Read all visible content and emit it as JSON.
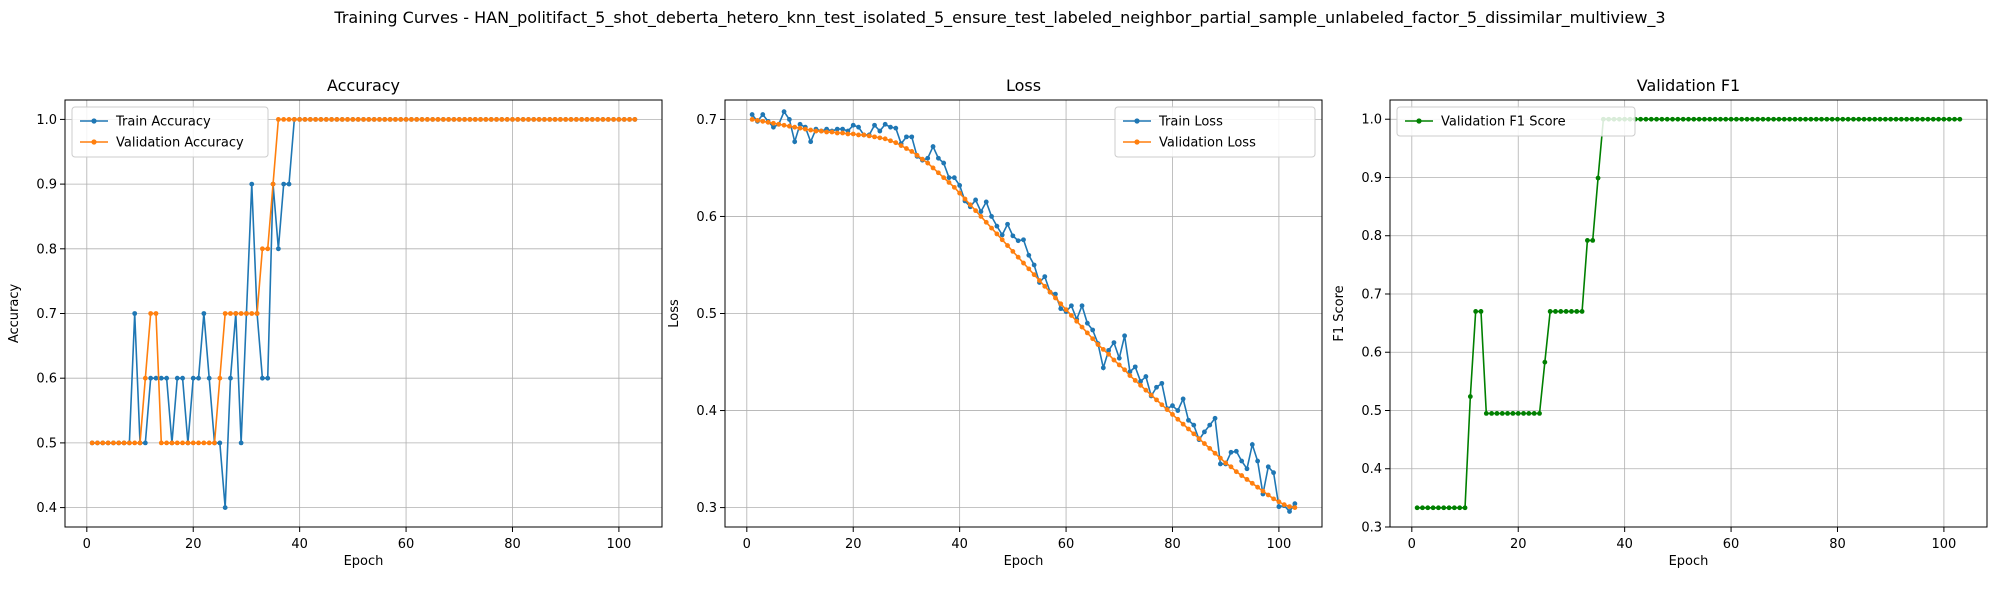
{
  "figure": {
    "suptitle": "Training Curves - HAN_politifact_5_shot_deberta_hetero_knn_test_isolated_5_ensure_test_labeled_neighbor_partial_sample_unlabeled_factor_5_dissimilar_multiview_3"
  },
  "colors": {
    "blue": "#1f77b4",
    "orange": "#ff7f0e",
    "green": "#008000",
    "grid": "#b0b0b0"
  },
  "chart_data": [
    {
      "type": "line",
      "title": "Accuracy",
      "xlabel": "Epoch",
      "ylabel": "Accuracy",
      "xlim": [
        -4.1,
        108.1
      ],
      "ylim": [
        0.37,
        1.03
      ],
      "xticks": [
        0,
        20,
        40,
        60,
        80,
        100
      ],
      "yticks": [
        0.4,
        0.5,
        0.6,
        0.7,
        0.8,
        0.9,
        1.0
      ],
      "ytick_labels": [
        "0.4",
        "0.5",
        "0.6",
        "0.7",
        "0.8",
        "0.9",
        "1.0"
      ],
      "grid": true,
      "legend_position": "upper-left",
      "series": [
        {
          "name": "Train Accuracy",
          "color": "#1f77b4",
          "x_start": 1,
          "values": [
            0.5,
            0.5,
            0.5,
            0.5,
            0.5,
            0.5,
            0.5,
            0.5,
            0.7,
            0.5,
            0.5,
            0.6,
            0.6,
            0.6,
            0.6,
            0.5,
            0.6,
            0.6,
            0.5,
            0.6,
            0.6,
            0.7,
            0.6,
            0.5,
            0.5,
            0.4,
            0.6,
            0.7,
            0.5,
            0.7,
            0.9,
            0.7,
            0.6,
            0.6,
            0.9,
            0.8,
            0.9,
            0.9,
            1.0,
            1.0,
            1.0,
            1.0,
            1.0,
            1.0,
            1.0,
            1.0,
            1.0,
            1.0,
            1.0,
            1.0,
            1.0,
            1.0,
            1.0,
            1.0,
            1.0,
            1.0,
            1.0,
            1.0,
            1.0,
            1.0,
            1.0,
            1.0,
            1.0,
            1.0,
            1.0,
            1.0,
            1.0,
            1.0,
            1.0,
            1.0,
            1.0,
            1.0,
            1.0,
            1.0,
            1.0,
            1.0,
            1.0,
            1.0,
            1.0,
            1.0,
            1.0,
            1.0,
            1.0,
            1.0,
            1.0,
            1.0,
            1.0,
            1.0,
            1.0,
            1.0,
            1.0,
            1.0,
            1.0,
            1.0,
            1.0,
            1.0,
            1.0,
            1.0,
            1.0,
            1.0,
            1.0,
            1.0,
            1.0
          ]
        },
        {
          "name": "Validation Accuracy",
          "color": "#ff7f0e",
          "x_start": 1,
          "values": [
            0.5,
            0.5,
            0.5,
            0.5,
            0.5,
            0.5,
            0.5,
            0.5,
            0.5,
            0.5,
            0.6,
            0.7,
            0.7,
            0.5,
            0.5,
            0.5,
            0.5,
            0.5,
            0.5,
            0.5,
            0.5,
            0.5,
            0.5,
            0.5,
            0.6,
            0.7,
            0.7,
            0.7,
            0.7,
            0.7,
            0.7,
            0.7,
            0.8,
            0.8,
            0.9,
            1.0,
            1.0,
            1.0,
            1.0,
            1.0,
            1.0,
            1.0,
            1.0,
            1.0,
            1.0,
            1.0,
            1.0,
            1.0,
            1.0,
            1.0,
            1.0,
            1.0,
            1.0,
            1.0,
            1.0,
            1.0,
            1.0,
            1.0,
            1.0,
            1.0,
            1.0,
            1.0,
            1.0,
            1.0,
            1.0,
            1.0,
            1.0,
            1.0,
            1.0,
            1.0,
            1.0,
            1.0,
            1.0,
            1.0,
            1.0,
            1.0,
            1.0,
            1.0,
            1.0,
            1.0,
            1.0,
            1.0,
            1.0,
            1.0,
            1.0,
            1.0,
            1.0,
            1.0,
            1.0,
            1.0,
            1.0,
            1.0,
            1.0,
            1.0,
            1.0,
            1.0,
            1.0,
            1.0,
            1.0,
            1.0,
            1.0,
            1.0,
            1.0
          ]
        }
      ]
    },
    {
      "type": "line",
      "title": "Loss",
      "xlabel": "Epoch",
      "ylabel": "Loss",
      "xlim": [
        -4.1,
        108.1
      ],
      "ylim": [
        0.28,
        0.72
      ],
      "xticks": [
        0,
        20,
        40,
        60,
        80,
        100
      ],
      "yticks": [
        0.3,
        0.4,
        0.5,
        0.6,
        0.7
      ],
      "ytick_labels": [
        "0.3",
        "0.4",
        "0.5",
        "0.6",
        "0.7"
      ],
      "grid": true,
      "legend_position": "upper-right",
      "series": [
        {
          "name": "Train Loss",
          "color": "#1f77b4",
          "x_start": 1,
          "values": [
            0.705,
            0.698,
            0.705,
            0.698,
            0.692,
            0.695,
            0.708,
            0.7,
            0.677,
            0.695,
            0.692,
            0.677,
            0.69,
            0.688,
            0.69,
            0.688,
            0.69,
            0.69,
            0.688,
            0.694,
            0.692,
            0.684,
            0.684,
            0.694,
            0.688,
            0.695,
            0.692,
            0.691,
            0.675,
            0.682,
            0.682,
            0.662,
            0.658,
            0.66,
            0.672,
            0.66,
            0.655,
            0.64,
            0.64,
            0.632,
            0.616,
            0.61,
            0.617,
            0.605,
            0.615,
            0.6,
            0.59,
            0.581,
            0.592,
            0.58,
            0.575,
            0.576,
            0.56,
            0.55,
            0.532,
            0.538,
            0.522,
            0.52,
            0.505,
            0.502,
            0.508,
            0.494,
            0.508,
            0.49,
            0.483,
            0.469,
            0.444,
            0.462,
            0.47,
            0.454,
            0.477,
            0.44,
            0.445,
            0.43,
            0.435,
            0.415,
            0.424,
            0.428,
            0.402,
            0.405,
            0.4,
            0.412,
            0.39,
            0.385,
            0.37,
            0.378,
            0.385,
            0.392,
            0.345,
            0.345,
            0.357,
            0.358,
            0.348,
            0.34,
            0.365,
            0.348,
            0.314,
            0.342,
            0.336,
            0.301,
            0.302,
            0.296,
            0.304
          ]
        },
        {
          "name": "Validation Loss",
          "color": "#ff7f0e",
          "x_start": 1,
          "values": [
            0.7,
            0.699,
            0.698,
            0.697,
            0.696,
            0.695,
            0.694,
            0.693,
            0.692,
            0.691,
            0.69,
            0.689,
            0.688,
            0.688,
            0.687,
            0.687,
            0.686,
            0.686,
            0.685,
            0.685,
            0.684,
            0.684,
            0.683,
            0.682,
            0.681,
            0.68,
            0.678,
            0.676,
            0.673,
            0.67,
            0.667,
            0.663,
            0.659,
            0.655,
            0.65,
            0.645,
            0.64,
            0.635,
            0.63,
            0.624,
            0.618,
            0.612,
            0.606,
            0.6,
            0.594,
            0.588,
            0.582,
            0.576,
            0.57,
            0.564,
            0.558,
            0.552,
            0.546,
            0.54,
            0.534,
            0.528,
            0.522,
            0.516,
            0.51,
            0.504,
            0.498,
            0.492,
            0.486,
            0.48,
            0.474,
            0.468,
            0.463,
            0.458,
            0.452,
            0.447,
            0.442,
            0.436,
            0.431,
            0.426,
            0.421,
            0.416,
            0.411,
            0.406,
            0.401,
            0.396,
            0.391,
            0.386,
            0.381,
            0.376,
            0.371,
            0.366,
            0.361,
            0.356,
            0.351,
            0.346,
            0.342,
            0.337,
            0.333,
            0.329,
            0.325,
            0.321,
            0.317,
            0.313,
            0.309,
            0.306,
            0.303,
            0.301,
            0.3
          ]
        }
      ]
    },
    {
      "type": "line",
      "title": "Validation F1",
      "xlabel": "Epoch",
      "ylabel": "F1 Score",
      "xlim": [
        -4.1,
        108.1
      ],
      "ylim": [
        0.3,
        1.033
      ],
      "xticks": [
        0,
        20,
        40,
        60,
        80,
        100
      ],
      "yticks": [
        0.3,
        0.4,
        0.5,
        0.6,
        0.7,
        0.8,
        0.9,
        1.0
      ],
      "ytick_labels": [
        "0.3",
        "0.4",
        "0.5",
        "0.6",
        "0.7",
        "0.8",
        "0.9",
        "1.0"
      ],
      "grid": true,
      "legend_position": "upper-left",
      "series": [
        {
          "name": "Validation F1 Score",
          "color": "#008000",
          "x_start": 1,
          "values": [
            0.333,
            0.333,
            0.333,
            0.333,
            0.333,
            0.333,
            0.333,
            0.333,
            0.333,
            0.333,
            0.524,
            0.67,
            0.67,
            0.495,
            0.495,
            0.495,
            0.495,
            0.495,
            0.495,
            0.495,
            0.495,
            0.495,
            0.495,
            0.495,
            0.583,
            0.67,
            0.67,
            0.67,
            0.67,
            0.67,
            0.67,
            0.67,
            0.792,
            0.792,
            0.899,
            1.0,
            1.0,
            1.0,
            1.0,
            1.0,
            1.0,
            1.0,
            1.0,
            1.0,
            1.0,
            1.0,
            1.0,
            1.0,
            1.0,
            1.0,
            1.0,
            1.0,
            1.0,
            1.0,
            1.0,
            1.0,
            1.0,
            1.0,
            1.0,
            1.0,
            1.0,
            1.0,
            1.0,
            1.0,
            1.0,
            1.0,
            1.0,
            1.0,
            1.0,
            1.0,
            1.0,
            1.0,
            1.0,
            1.0,
            1.0,
            1.0,
            1.0,
            1.0,
            1.0,
            1.0,
            1.0,
            1.0,
            1.0,
            1.0,
            1.0,
            1.0,
            1.0,
            1.0,
            1.0,
            1.0,
            1.0,
            1.0,
            1.0,
            1.0,
            1.0,
            1.0,
            1.0,
            1.0,
            1.0,
            1.0,
            1.0,
            1.0,
            1.0
          ]
        }
      ]
    }
  ]
}
